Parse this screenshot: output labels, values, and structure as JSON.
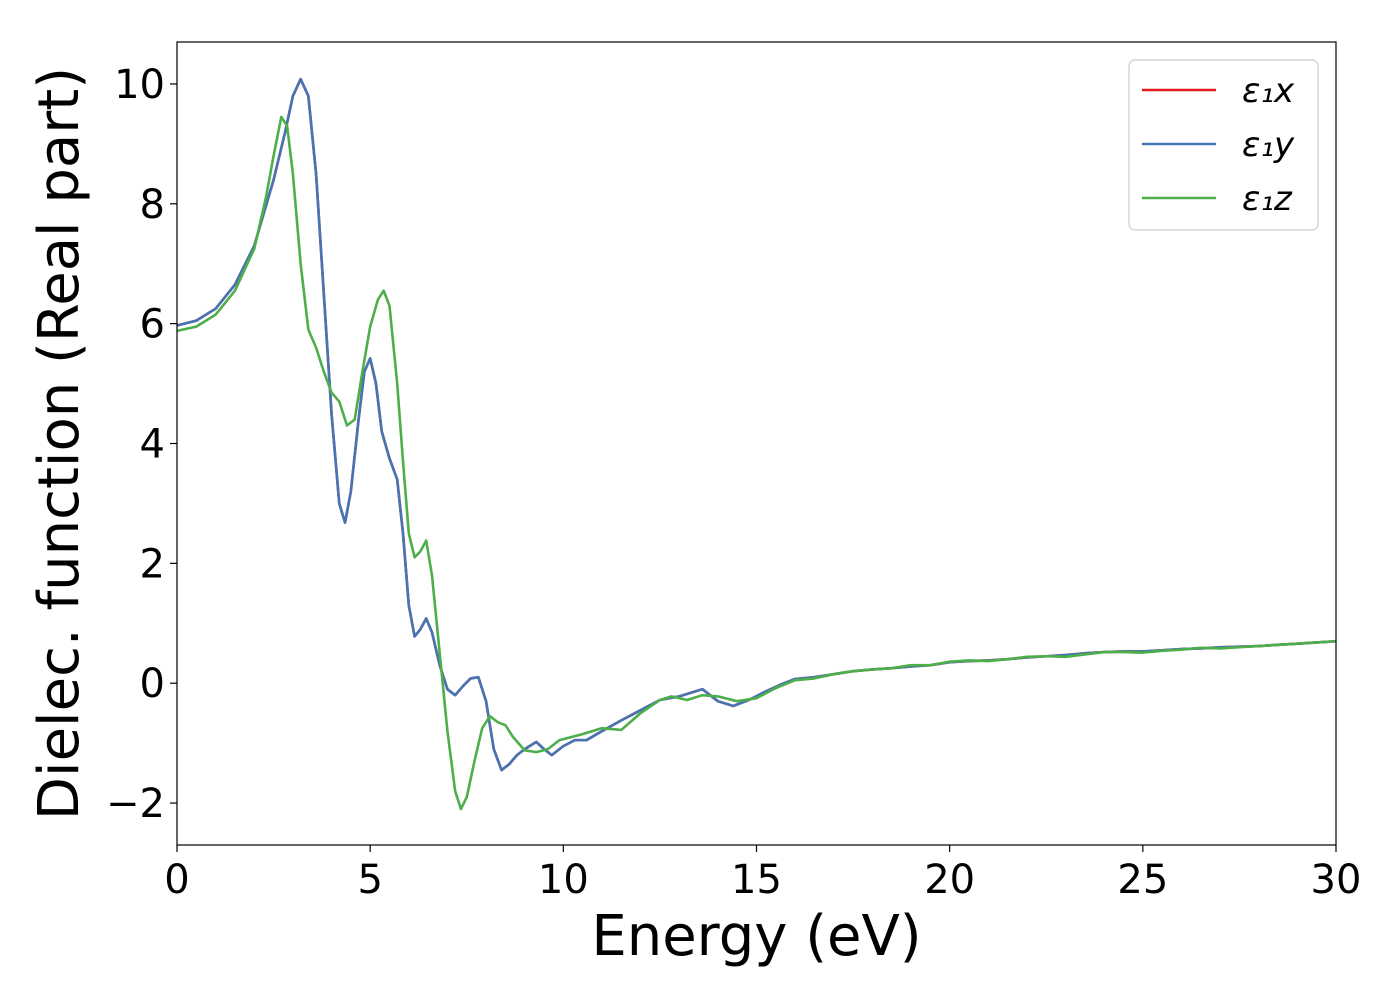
{
  "chart_data": {
    "type": "line",
    "title": "",
    "xlabel": "Energy (eV)",
    "ylabel": "Dielec. function (Real part)",
    "xlim": [
      0,
      30
    ],
    "ylim": [
      -2.7,
      10.7
    ],
    "xticks": [
      0,
      5,
      10,
      15,
      20,
      25,
      30
    ],
    "yticks": [
      -2,
      0,
      2,
      4,
      6,
      8,
      10
    ],
    "xtick_labels": [
      "0",
      "5",
      "10",
      "15",
      "20",
      "25",
      "30"
    ],
    "ytick_labels": [
      "−2",
      "0",
      "2",
      "4",
      "6",
      "8",
      "10"
    ],
    "grid": false,
    "legend_position": "top-right",
    "series": [
      {
        "name": "ε₁x",
        "color": "#e41a1c",
        "points": [
          [
            0,
            5.97
          ],
          [
            0.5,
            6.05
          ],
          [
            1.0,
            6.25
          ],
          [
            1.5,
            6.65
          ],
          [
            2.0,
            7.3
          ],
          [
            2.5,
            8.4
          ],
          [
            2.8,
            9.2
          ],
          [
            3.0,
            9.8
          ],
          [
            3.2,
            10.08
          ],
          [
            3.4,
            9.8
          ],
          [
            3.6,
            8.5
          ],
          [
            3.8,
            6.5
          ],
          [
            4.0,
            4.5
          ],
          [
            4.2,
            3.0
          ],
          [
            4.35,
            2.68
          ],
          [
            4.5,
            3.2
          ],
          [
            4.7,
            4.4
          ],
          [
            4.85,
            5.2
          ],
          [
            5.0,
            5.42
          ],
          [
            5.15,
            5.0
          ],
          [
            5.3,
            4.2
          ],
          [
            5.5,
            3.75
          ],
          [
            5.7,
            3.4
          ],
          [
            5.85,
            2.5
          ],
          [
            6.0,
            1.3
          ],
          [
            6.15,
            0.78
          ],
          [
            6.3,
            0.9
          ],
          [
            6.45,
            1.08
          ],
          [
            6.6,
            0.85
          ],
          [
            6.8,
            0.3
          ],
          [
            7.0,
            -0.1
          ],
          [
            7.2,
            -0.2
          ],
          [
            7.4,
            -0.05
          ],
          [
            7.6,
            0.08
          ],
          [
            7.8,
            0.1
          ],
          [
            8.0,
            -0.3
          ],
          [
            8.2,
            -1.1
          ],
          [
            8.4,
            -1.45
          ],
          [
            8.6,
            -1.35
          ],
          [
            8.8,
            -1.2
          ],
          [
            9.0,
            -1.1
          ],
          [
            9.3,
            -0.98
          ],
          [
            9.5,
            -1.1
          ],
          [
            9.7,
            -1.2
          ],
          [
            10.0,
            -1.05
          ],
          [
            10.3,
            -0.95
          ],
          [
            10.6,
            -0.95
          ],
          [
            11.0,
            -0.8
          ],
          [
            11.5,
            -0.62
          ],
          [
            12.0,
            -0.45
          ],
          [
            12.5,
            -0.28
          ],
          [
            13.0,
            -0.22
          ],
          [
            13.6,
            -0.1
          ],
          [
            14.0,
            -0.3
          ],
          [
            14.4,
            -0.38
          ],
          [
            14.8,
            -0.28
          ],
          [
            15.2,
            -0.15
          ],
          [
            15.6,
            -0.03
          ],
          [
            16.0,
            0.07
          ],
          [
            16.5,
            0.1
          ],
          [
            17.0,
            0.15
          ],
          [
            17.5,
            0.2
          ],
          [
            18.0,
            0.23
          ],
          [
            18.5,
            0.25
          ],
          [
            19.0,
            0.28
          ],
          [
            19.5,
            0.3
          ],
          [
            20.0,
            0.35
          ],
          [
            20.5,
            0.37
          ],
          [
            21.0,
            0.38
          ],
          [
            21.5,
            0.4
          ],
          [
            22.0,
            0.43
          ],
          [
            22.5,
            0.45
          ],
          [
            23.0,
            0.47
          ],
          [
            23.5,
            0.5
          ],
          [
            24.0,
            0.52
          ],
          [
            24.5,
            0.53
          ],
          [
            25.0,
            0.53
          ],
          [
            25.5,
            0.55
          ],
          [
            26.0,
            0.57
          ],
          [
            26.5,
            0.58
          ],
          [
            27.0,
            0.6
          ],
          [
            27.5,
            0.61
          ],
          [
            28.0,
            0.62
          ],
          [
            28.5,
            0.64
          ],
          [
            29.0,
            0.66
          ],
          [
            29.5,
            0.68
          ],
          [
            30.0,
            0.7
          ]
        ]
      },
      {
        "name": "ε₁y",
        "color": "#4575b4",
        "points": [
          [
            0,
            5.97
          ],
          [
            0.5,
            6.05
          ],
          [
            1.0,
            6.25
          ],
          [
            1.5,
            6.65
          ],
          [
            2.0,
            7.3
          ],
          [
            2.5,
            8.4
          ],
          [
            2.8,
            9.2
          ],
          [
            3.0,
            9.8
          ],
          [
            3.2,
            10.08
          ],
          [
            3.4,
            9.8
          ],
          [
            3.6,
            8.5
          ],
          [
            3.8,
            6.5
          ],
          [
            4.0,
            4.5
          ],
          [
            4.2,
            3.0
          ],
          [
            4.35,
            2.68
          ],
          [
            4.5,
            3.2
          ],
          [
            4.7,
            4.4
          ],
          [
            4.85,
            5.2
          ],
          [
            5.0,
            5.42
          ],
          [
            5.15,
            5.0
          ],
          [
            5.3,
            4.2
          ],
          [
            5.5,
            3.75
          ],
          [
            5.7,
            3.4
          ],
          [
            5.85,
            2.5
          ],
          [
            6.0,
            1.3
          ],
          [
            6.15,
            0.78
          ],
          [
            6.3,
            0.9
          ],
          [
            6.45,
            1.08
          ],
          [
            6.6,
            0.85
          ],
          [
            6.8,
            0.3
          ],
          [
            7.0,
            -0.1
          ],
          [
            7.2,
            -0.2
          ],
          [
            7.4,
            -0.05
          ],
          [
            7.6,
            0.08
          ],
          [
            7.8,
            0.1
          ],
          [
            8.0,
            -0.3
          ],
          [
            8.2,
            -1.1
          ],
          [
            8.4,
            -1.45
          ],
          [
            8.6,
            -1.35
          ],
          [
            8.8,
            -1.2
          ],
          [
            9.0,
            -1.1
          ],
          [
            9.3,
            -0.98
          ],
          [
            9.5,
            -1.1
          ],
          [
            9.7,
            -1.2
          ],
          [
            10.0,
            -1.05
          ],
          [
            10.3,
            -0.95
          ],
          [
            10.6,
            -0.95
          ],
          [
            11.0,
            -0.8
          ],
          [
            11.5,
            -0.62
          ],
          [
            12.0,
            -0.45
          ],
          [
            12.5,
            -0.28
          ],
          [
            13.0,
            -0.22
          ],
          [
            13.6,
            -0.1
          ],
          [
            14.0,
            -0.3
          ],
          [
            14.4,
            -0.38
          ],
          [
            14.8,
            -0.28
          ],
          [
            15.2,
            -0.15
          ],
          [
            15.6,
            -0.03
          ],
          [
            16.0,
            0.07
          ],
          [
            16.5,
            0.1
          ],
          [
            17.0,
            0.15
          ],
          [
            17.5,
            0.2
          ],
          [
            18.0,
            0.23
          ],
          [
            18.5,
            0.25
          ],
          [
            19.0,
            0.28
          ],
          [
            19.5,
            0.3
          ],
          [
            20.0,
            0.35
          ],
          [
            20.5,
            0.37
          ],
          [
            21.0,
            0.38
          ],
          [
            21.5,
            0.4
          ],
          [
            22.0,
            0.43
          ],
          [
            22.5,
            0.45
          ],
          [
            23.0,
            0.47
          ],
          [
            23.5,
            0.5
          ],
          [
            24.0,
            0.52
          ],
          [
            24.5,
            0.53
          ],
          [
            25.0,
            0.53
          ],
          [
            25.5,
            0.55
          ],
          [
            26.0,
            0.57
          ],
          [
            26.5,
            0.58
          ],
          [
            27.0,
            0.6
          ],
          [
            27.5,
            0.61
          ],
          [
            28.0,
            0.62
          ],
          [
            28.5,
            0.64
          ],
          [
            29.0,
            0.66
          ],
          [
            29.5,
            0.68
          ],
          [
            30.0,
            0.7
          ]
        ]
      },
      {
        "name": "ε₁z",
        "color": "#4daf4a",
        "points": [
          [
            0,
            5.88
          ],
          [
            0.5,
            5.95
          ],
          [
            1.0,
            6.15
          ],
          [
            1.5,
            6.55
          ],
          [
            2.0,
            7.25
          ],
          [
            2.3,
            8.1
          ],
          [
            2.5,
            8.8
          ],
          [
            2.7,
            9.45
          ],
          [
            2.85,
            9.3
          ],
          [
            3.0,
            8.5
          ],
          [
            3.2,
            7.0
          ],
          [
            3.4,
            5.9
          ],
          [
            3.6,
            5.6
          ],
          [
            3.8,
            5.2
          ],
          [
            4.0,
            4.85
          ],
          [
            4.2,
            4.7
          ],
          [
            4.4,
            4.3
          ],
          [
            4.6,
            4.4
          ],
          [
            4.8,
            5.2
          ],
          [
            5.0,
            5.95
          ],
          [
            5.2,
            6.4
          ],
          [
            5.35,
            6.55
          ],
          [
            5.5,
            6.3
          ],
          [
            5.7,
            5.0
          ],
          [
            5.85,
            3.7
          ],
          [
            6.0,
            2.5
          ],
          [
            6.15,
            2.1
          ],
          [
            6.3,
            2.2
          ],
          [
            6.45,
            2.38
          ],
          [
            6.6,
            1.8
          ],
          [
            6.8,
            0.5
          ],
          [
            7.0,
            -0.8
          ],
          [
            7.2,
            -1.8
          ],
          [
            7.35,
            -2.1
          ],
          [
            7.5,
            -1.9
          ],
          [
            7.7,
            -1.3
          ],
          [
            7.9,
            -0.75
          ],
          [
            8.1,
            -0.55
          ],
          [
            8.3,
            -0.65
          ],
          [
            8.5,
            -0.7
          ],
          [
            8.7,
            -0.9
          ],
          [
            9.0,
            -1.12
          ],
          [
            9.3,
            -1.15
          ],
          [
            9.6,
            -1.1
          ],
          [
            9.9,
            -0.95
          ],
          [
            10.2,
            -0.9
          ],
          [
            10.5,
            -0.85
          ],
          [
            11.0,
            -0.75
          ],
          [
            11.5,
            -0.78
          ],
          [
            12.0,
            -0.5
          ],
          [
            12.5,
            -0.28
          ],
          [
            12.8,
            -0.22
          ],
          [
            13.2,
            -0.28
          ],
          [
            13.6,
            -0.2
          ],
          [
            14.0,
            -0.22
          ],
          [
            14.5,
            -0.3
          ],
          [
            15.0,
            -0.25
          ],
          [
            15.5,
            -0.08
          ],
          [
            16.0,
            0.05
          ],
          [
            16.5,
            0.08
          ],
          [
            17.0,
            0.15
          ],
          [
            17.5,
            0.2
          ],
          [
            18.0,
            0.23
          ],
          [
            18.5,
            0.25
          ],
          [
            19.0,
            0.3
          ],
          [
            19.5,
            0.3
          ],
          [
            20.0,
            0.36
          ],
          [
            20.5,
            0.38
          ],
          [
            21.0,
            0.37
          ],
          [
            21.5,
            0.4
          ],
          [
            22.0,
            0.44
          ],
          [
            22.5,
            0.45
          ],
          [
            23.0,
            0.44
          ],
          [
            23.5,
            0.48
          ],
          [
            24.0,
            0.52
          ],
          [
            24.5,
            0.52
          ],
          [
            25.0,
            0.51
          ],
          [
            25.5,
            0.54
          ],
          [
            26.0,
            0.56
          ],
          [
            26.5,
            0.59
          ],
          [
            27.0,
            0.58
          ],
          [
            27.5,
            0.6
          ],
          [
            28.0,
            0.62
          ],
          [
            28.5,
            0.64
          ],
          [
            29.0,
            0.66
          ],
          [
            29.5,
            0.68
          ],
          [
            30.0,
            0.7
          ]
        ]
      }
    ]
  }
}
